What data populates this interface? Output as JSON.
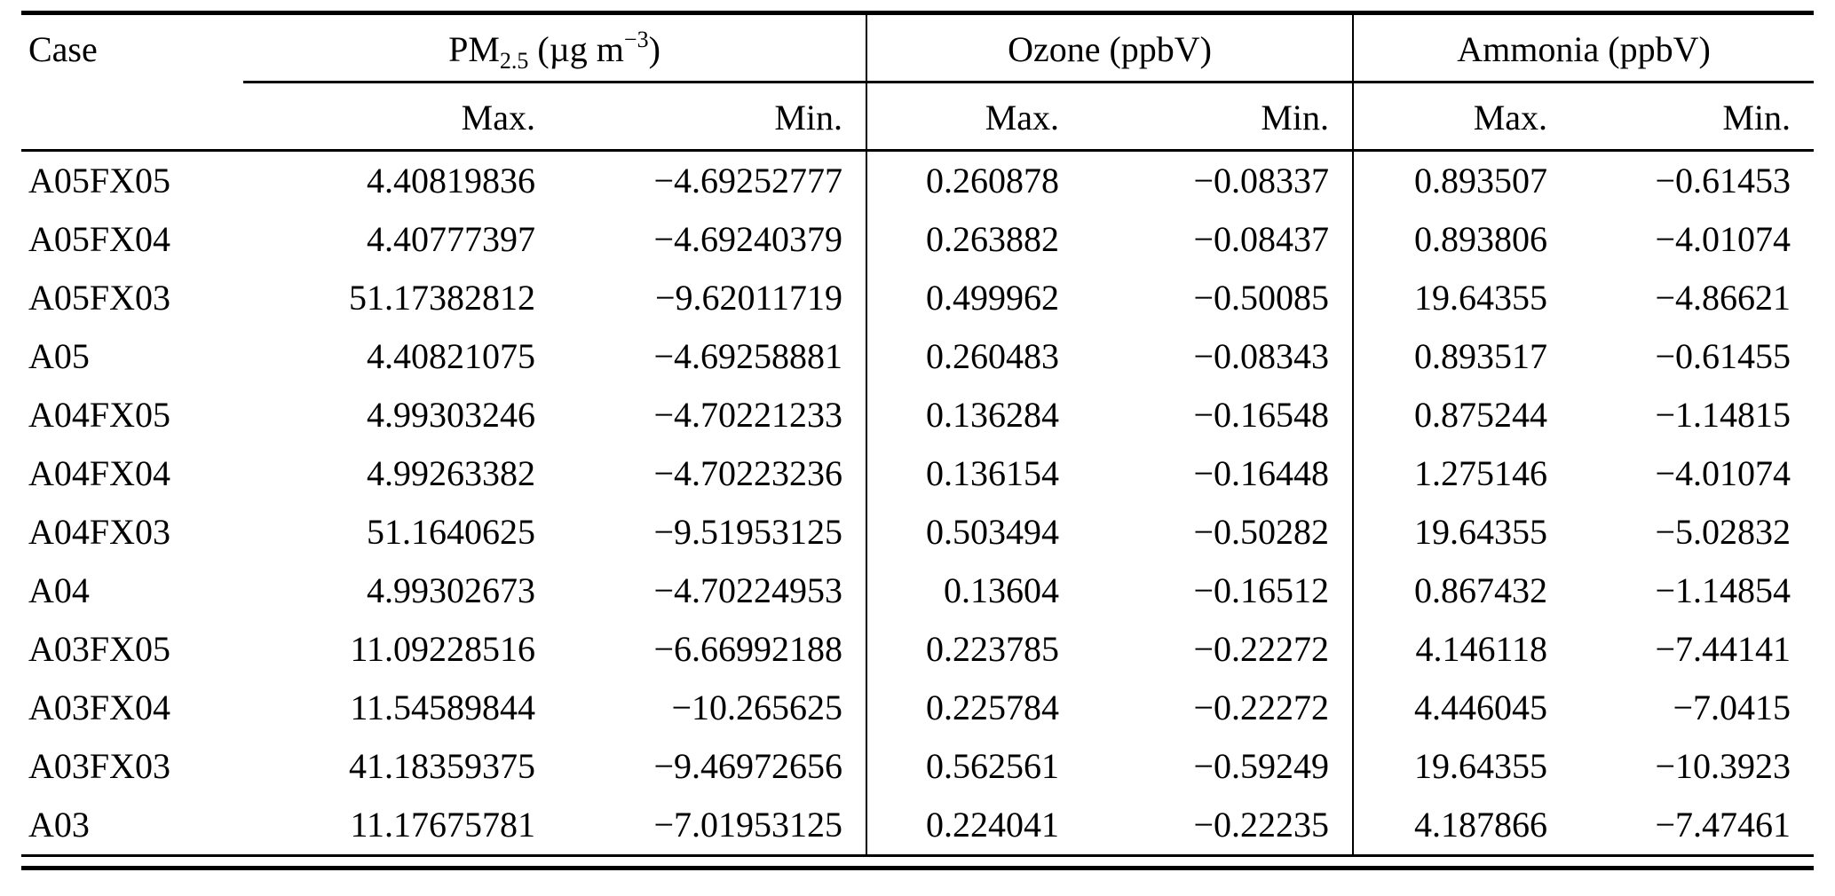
{
  "header": {
    "case": "Case",
    "pm": {
      "base": "PM",
      "sub": "2.5",
      "unit_open": " (µg m",
      "exp": "−3",
      "unit_close": ")"
    },
    "ozone": "Ozone (ppbV)",
    "ammonia": "Ammonia (ppbV)",
    "max_label": "Max.",
    "min_label": "Min."
  },
  "rows": [
    [
      "A05FX05",
      "4.40819836",
      "−4.69252777",
      "0.260878",
      "−0.08337",
      "0.893507",
      "−0.61453"
    ],
    [
      "A05FX04",
      "4.40777397",
      "−4.69240379",
      "0.263882",
      "−0.08437",
      "0.893806",
      "−4.01074"
    ],
    [
      "A05FX03",
      "51.17382812",
      "−9.62011719",
      "0.499962",
      "−0.50085",
      "19.64355",
      "−4.86621"
    ],
    [
      "A05",
      "4.40821075",
      "−4.69258881",
      "0.260483",
      "−0.08343",
      "0.893517",
      "−0.61455"
    ],
    [
      "A04FX05",
      "4.99303246",
      "−4.70221233",
      "0.136284",
      "−0.16548",
      "0.875244",
      "−1.14815"
    ],
    [
      "A04FX04",
      "4.99263382",
      "−4.70223236",
      "0.136154",
      "−0.16448",
      "1.275146",
      "−4.01074"
    ],
    [
      "A04FX03",
      "51.1640625",
      "−9.51953125",
      "0.503494",
      "−0.50282",
      "19.64355",
      "−5.02832"
    ],
    [
      "A04",
      "4.99302673",
      "−4.70224953",
      "0.13604",
      "−0.16512",
      "0.867432",
      "−1.14854"
    ],
    [
      "A03FX05",
      "11.09228516",
      "−6.66992188",
      "0.223785",
      "−0.22272",
      "4.146118",
      "−7.44141"
    ],
    [
      "A03FX04",
      "11.54589844",
      "−10.265625",
      "0.225784",
      "−0.22272",
      "4.446045",
      "−7.0415"
    ],
    [
      "A03FX03",
      "41.18359375",
      "−9.46972656",
      "0.562561",
      "−0.59249",
      "19.64355",
      "−10.3923"
    ],
    [
      "A03",
      "11.17675781",
      "−7.01953125",
      "0.224041",
      "−0.22235",
      "4.187866",
      "−7.47461"
    ]
  ]
}
